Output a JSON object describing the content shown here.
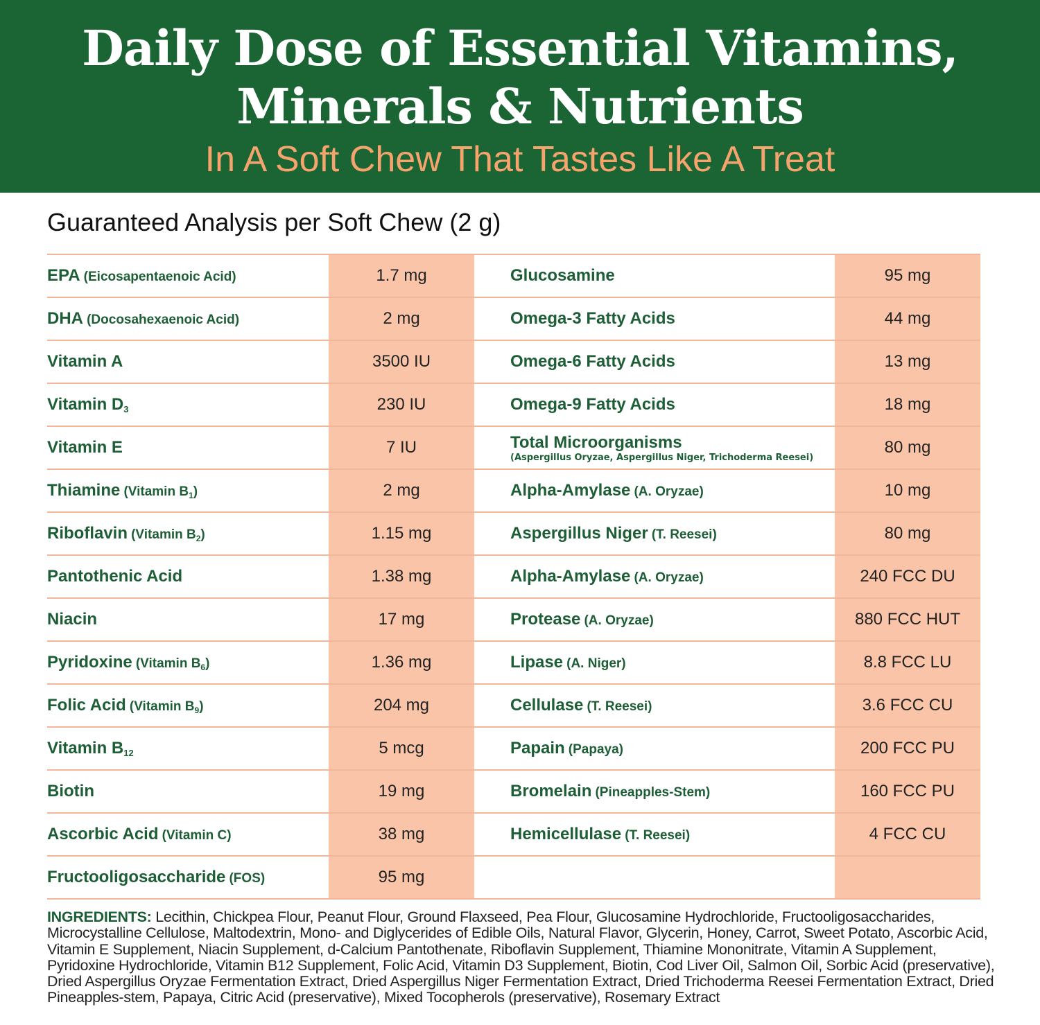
{
  "header": {
    "title_line1": "Daily Dose of Essential Vitamins,",
    "title_line2": "Minerals & Nutrients",
    "subtitle": "In A Soft Chew That Tastes Like A Treat"
  },
  "analysis_title": "Guaranteed Analysis per Soft Chew (2 g)",
  "colors": {
    "header_bg": "#1b6535",
    "text_green": "#1d5e36",
    "subtitle_orange": "#f4a46c",
    "value_cell_bg": "#f9c4a8",
    "divider": "#f0b79a"
  },
  "rows": [
    {
      "left": {
        "name": "EPA",
        "note": "(Eicosapentaenoic Acid)",
        "value": "1.7 mg"
      },
      "right": {
        "name": "Glucosamine",
        "value": "95 mg"
      }
    },
    {
      "left": {
        "name": "DHA",
        "note": "(Docosahexaenoic Acid)",
        "value": "2 mg"
      },
      "right": {
        "name": "Omega-3 Fatty Acids",
        "value": "44 mg"
      }
    },
    {
      "left": {
        "name": "Vitamin A",
        "value": "3500 IU"
      },
      "right": {
        "name": "Omega-6 Fatty Acids",
        "value": "13 mg"
      }
    },
    {
      "left": {
        "name": "Vitamin D",
        "name_sub": "3",
        "value": "230 IU"
      },
      "right": {
        "name": "Omega-9 Fatty Acids",
        "value": "18 mg"
      }
    },
    {
      "left": {
        "name": "Vitamin E",
        "value": "7 IU"
      },
      "right": {
        "name": "Total Microorganisms",
        "detail": "(Aspergillus Oryzae, Aspergillus Niger, Trichoderma Reesei)",
        "value": "80 mg"
      }
    },
    {
      "left": {
        "name": "Thiamine",
        "note": "(Vitamin B",
        "note_sub": "1",
        "note_end": ")",
        "value": "2 mg"
      },
      "right": {
        "name": "Alpha-Amylase",
        "note": "(A. Oryzae)",
        "value": "10 mg"
      }
    },
    {
      "left": {
        "name": "Riboflavin",
        "note": "(Vitamin B",
        "note_sub": "2",
        "note_end": ")",
        "value": "1.15 mg"
      },
      "right": {
        "name": "Aspergillus Niger",
        "note": "(T. Reesei)",
        "value": "80 mg"
      }
    },
    {
      "left": {
        "name": "Pantothenic Acid",
        "value": "1.38 mg"
      },
      "right": {
        "name": "Alpha-Amylase",
        "note": "(A. Oryzae)",
        "value": "240 FCC DU"
      }
    },
    {
      "left": {
        "name": "Niacin",
        "value": "17 mg"
      },
      "right": {
        "name": "Protease",
        "note": "(A. Oryzae)",
        "value": "880 FCC HUT"
      }
    },
    {
      "left": {
        "name": "Pyridoxine",
        "note": "(Vitamin B",
        "note_sub": "6",
        "note_end": ")",
        "value": "1.36 mg"
      },
      "right": {
        "name": "Lipase",
        "note": "(A. Niger)",
        "value": "8.8 FCC LU"
      }
    },
    {
      "left": {
        "name": "Folic Acid",
        "note": "(Vitamin B",
        "note_sub": "9",
        "note_end": ")",
        "value": "204 mg"
      },
      "right": {
        "name": "Cellulase",
        "note": "(T. Reesei)",
        "value": "3.6 FCC CU"
      }
    },
    {
      "left": {
        "name": "Vitamin B",
        "name_sub": "12",
        "value": "5 mcg"
      },
      "right": {
        "name": "Papain",
        "note": "(Papaya)",
        "value": "200 FCC PU"
      }
    },
    {
      "left": {
        "name": "Biotin",
        "value": "19 mg"
      },
      "right": {
        "name": "Bromelain",
        "note": "(Pineapples-Stem)",
        "value": "160 FCC PU"
      }
    },
    {
      "left": {
        "name": "Ascorbic Acid",
        "note": "(Vitamin C)",
        "value": "38 mg"
      },
      "right": {
        "name": "Hemicellulase",
        "note": "(T. Reesei)",
        "value": "4 FCC CU"
      }
    },
    {
      "left": {
        "name": "Fructooligosaccharide",
        "note": "(FOS)",
        "value": "95 mg"
      },
      "right": {
        "name": "",
        "value": ""
      }
    }
  ],
  "ingredients": {
    "label": "INGREDIENTS:",
    "text": "Lecithin, Chickpea Flour, Peanut Flour, Ground Flaxseed, Pea Flour, Glucosamine Hydrochloride, Fructooligosaccharides, Microcystalline Cellulose, Maltodextrin, Mono- and Diglycerides of Edible Oils, Natural Flavor, Glycerin, Honey, Carrot, Sweet Potato, Ascorbic Acid, Vitamin E Supplement, Niacin Supplement, d-Calcium Pantothenate, Riboflavin Supplement, Thiamine Mononitrate, Vitamin A Supplement, Pyridoxine Hydrochloride, Vitamin B12 Supplement, Folic Acid, Vitamin D3 Supplement, Biotin, Cod Liver Oil, Salmon Oil, Sorbic Acid (preservative), Dried Aspergillus Oryzae Fermentation Extract, Dried Aspergillus Niger Fermentation Extract, Dried Trichoderma Reesei Fermentation Extract, Dried Pineapples-stem, Papaya, Citric Acid (preservative), Mixed Tocopherols (preservative), Rosemary Extract"
  }
}
